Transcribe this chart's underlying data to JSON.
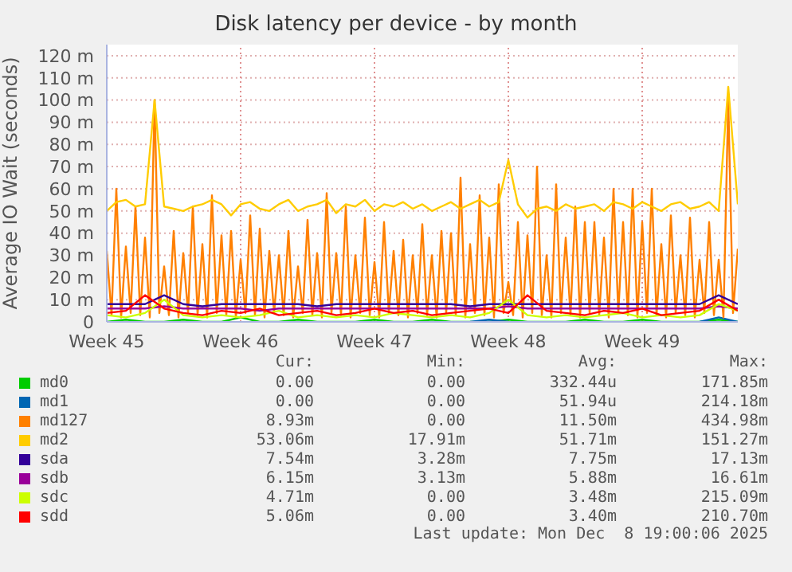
{
  "chart_data": {
    "type": "line",
    "title": "Disk latency per device - by month",
    "ylabel": "Average IO Wait (seconds)",
    "series": [
      {
        "name": "md0",
        "color": "#00cc00",
        "x": [
          "2025-11-03",
          "2025-11-04",
          "2025-11-05",
          "2025-11-06",
          "2025-11-07",
          "2025-11-08",
          "2025-11-09",
          "2025-11-10",
          "2025-11-11",
          "2025-11-12",
          "2025-11-13",
          "2025-11-14",
          "2025-11-15",
          "2025-11-16",
          "2025-11-17",
          "2025-11-18",
          "2025-11-19",
          "2025-11-20",
          "2025-11-21",
          "2025-11-22",
          "2025-11-23",
          "2025-11-24",
          "2025-11-25",
          "2025-11-26",
          "2025-11-27",
          "2025-11-28",
          "2025-11-29",
          "2025-11-30",
          "2025-12-01",
          "2025-12-02",
          "2025-12-03",
          "2025-12-04",
          "2025-12-05",
          "2025-12-06"
        ],
        "values": [
          0,
          1,
          0,
          0,
          1,
          0,
          0,
          2,
          0,
          0,
          1,
          0,
          0,
          0,
          1,
          0,
          0,
          1,
          0,
          0,
          0,
          1,
          0,
          0,
          0,
          1,
          0,
          0,
          1,
          0,
          0,
          0,
          1,
          0
        ]
      },
      {
        "name": "md1",
        "color": "#0066b3",
        "x": [
          "2025-11-22",
          "2025-11-23",
          "2025-11-24",
          "2025-11-28",
          "2025-12-04",
          "2025-12-05",
          "2025-12-06"
        ],
        "values": [
          0,
          1,
          0,
          null,
          0,
          2,
          0
        ]
      },
      {
        "name": "md127",
        "color": "#ff8000",
        "x": [
          "2025-11-03T00:00",
          "2025-11-03T06:00",
          "2025-11-03T12:00",
          "2025-11-03T18:00",
          "2025-11-04T00:00",
          "2025-11-04T06:00",
          "2025-11-04T12:00",
          "2025-11-04T18:00",
          "2025-11-05T00:00",
          "2025-11-05T06:00",
          "2025-11-05T12:00",
          "2025-11-05T18:00",
          "2025-11-06T00:00",
          "2025-11-06T06:00",
          "2025-11-06T12:00",
          "2025-11-06T18:00",
          "2025-11-07T00:00",
          "2025-11-07T06:00",
          "2025-11-07T12:00",
          "2025-11-07T18:00",
          "2025-11-08T00:00",
          "2025-11-08T06:00",
          "2025-11-08T12:00",
          "2025-11-08T18:00",
          "2025-11-09T00:00",
          "2025-11-09T06:00",
          "2025-11-09T12:00",
          "2025-11-09T18:00",
          "2025-11-10T00:00",
          "2025-11-10T06:00",
          "2025-11-10T12:00",
          "2025-11-10T18:00",
          "2025-11-11T00:00",
          "2025-11-11T06:00",
          "2025-11-11T12:00",
          "2025-11-11T18:00",
          "2025-11-12T00:00",
          "2025-11-12T06:00",
          "2025-11-12T12:00",
          "2025-11-12T18:00",
          "2025-11-13T00:00",
          "2025-11-13T06:00",
          "2025-11-13T12:00",
          "2025-11-13T18:00",
          "2025-11-14T00:00",
          "2025-11-14T06:00",
          "2025-11-14T12:00",
          "2025-11-14T18:00",
          "2025-11-15T00:00",
          "2025-11-15T06:00",
          "2025-11-15T12:00",
          "2025-11-15T18:00",
          "2025-11-16T00:00",
          "2025-11-16T06:00",
          "2025-11-16T12:00",
          "2025-11-16T18:00",
          "2025-11-17T00:00",
          "2025-11-17T06:00",
          "2025-11-17T12:00",
          "2025-11-17T18:00",
          "2025-11-18T00:00",
          "2025-11-18T06:00",
          "2025-11-18T12:00",
          "2025-11-18T18:00",
          "2025-11-19T00:00",
          "2025-11-19T06:00",
          "2025-11-19T12:00",
          "2025-11-19T18:00",
          "2025-11-20T00:00",
          "2025-11-20T06:00",
          "2025-11-20T12:00",
          "2025-11-20T18:00",
          "2025-11-21T00:00",
          "2025-11-21T06:00",
          "2025-11-21T12:00",
          "2025-11-21T18:00",
          "2025-11-22T00:00",
          "2025-11-22T06:00",
          "2025-11-22T12:00",
          "2025-11-22T18:00",
          "2025-11-23T00:00",
          "2025-11-23T06:00",
          "2025-11-23T12:00",
          "2025-11-23T18:00",
          "2025-11-24T00:00",
          "2025-11-24T06:00",
          "2025-11-24T12:00",
          "2025-11-24T18:00",
          "2025-11-25T00:00",
          "2025-11-25T06:00",
          "2025-11-25T12:00",
          "2025-11-25T18:00",
          "2025-11-26T00:00",
          "2025-11-26T06:00",
          "2025-11-26T12:00",
          "2025-11-26T18:00",
          "2025-11-27T00:00",
          "2025-11-27T06:00",
          "2025-11-27T12:00",
          "2025-11-27T18:00",
          "2025-11-28T00:00",
          "2025-11-28T06:00",
          "2025-11-28T12:00",
          "2025-11-28T18:00",
          "2025-11-29T00:00",
          "2025-11-29T06:00",
          "2025-11-29T12:00",
          "2025-11-29T18:00",
          "2025-11-30T00:00",
          "2025-11-30T06:00",
          "2025-11-30T12:00",
          "2025-11-30T18:00",
          "2025-12-01T00:00",
          "2025-12-01T06:00",
          "2025-12-01T12:00",
          "2025-12-01T18:00",
          "2025-12-02T00:00",
          "2025-12-02T06:00",
          "2025-12-02T12:00",
          "2025-12-02T18:00",
          "2025-12-03T00:00",
          "2025-12-03T06:00",
          "2025-12-03T12:00",
          "2025-12-03T18:00",
          "2025-12-04T00:00",
          "2025-12-04T06:00",
          "2025-12-04T12:00",
          "2025-12-04T18:00",
          "2025-12-05T00:00",
          "2025-12-05T06:00",
          "2025-12-05T12:00",
          "2025-12-05T18:00",
          "2025-12-06T00:00"
        ],
        "values": [
          32,
          3,
          60,
          2,
          34,
          4,
          52,
          3,
          38,
          2,
          100,
          4,
          25,
          3,
          41,
          2,
          31,
          4,
          52,
          3,
          35,
          2,
          57,
          4,
          39,
          3,
          41,
          2,
          28,
          4,
          48,
          3,
          42,
          2,
          32,
          4,
          30,
          3,
          41,
          2,
          25,
          4,
          46,
          3,
          31,
          2,
          58,
          4,
          31,
          3,
          52,
          2,
          30,
          4,
          47,
          3,
          27,
          2,
          45,
          4,
          32,
          3,
          37,
          2,
          30,
          4,
          44,
          3,
          30,
          2,
          41,
          4,
          40,
          3,
          65,
          2,
          35,
          4,
          57,
          3,
          38,
          2,
          62,
          4,
          18,
          3,
          45,
          2,
          39,
          4,
          70,
          3,
          30,
          2,
          62,
          4,
          38,
          3,
          52,
          2,
          45,
          4,
          45,
          3,
          38,
          2,
          60,
          4,
          45,
          3,
          60,
          2,
          45,
          4,
          60,
          3,
          35,
          2,
          48,
          4,
          30,
          3,
          47,
          2,
          28,
          4,
          45,
          3,
          28,
          2,
          100,
          4,
          33
        ]
      },
      {
        "name": "md2",
        "color": "#ffcc00",
        "x": [
          "2025-11-03T00:00",
          "2025-11-03T12:00",
          "2025-11-04T00:00",
          "2025-11-04T12:00",
          "2025-11-05T00:00",
          "2025-11-05T12:00",
          "2025-11-06T00:00",
          "2025-11-06T12:00",
          "2025-11-07T00:00",
          "2025-11-07T12:00",
          "2025-11-08T00:00",
          "2025-11-08T12:00",
          "2025-11-09T00:00",
          "2025-11-09T12:00",
          "2025-11-10T00:00",
          "2025-11-10T12:00",
          "2025-11-11T00:00",
          "2025-11-11T12:00",
          "2025-11-12T00:00",
          "2025-11-12T12:00",
          "2025-11-13T00:00",
          "2025-11-13T12:00",
          "2025-11-14T00:00",
          "2025-11-14T12:00",
          "2025-11-15T00:00",
          "2025-11-15T12:00",
          "2025-11-16T00:00",
          "2025-11-16T12:00",
          "2025-11-17T00:00",
          "2025-11-17T12:00",
          "2025-11-18T00:00",
          "2025-11-18T12:00",
          "2025-11-19T00:00",
          "2025-11-19T12:00",
          "2025-11-20T00:00",
          "2025-11-20T12:00",
          "2025-11-21T00:00",
          "2025-11-21T12:00",
          "2025-11-22T00:00",
          "2025-11-22T12:00",
          "2025-11-23T00:00",
          "2025-11-23T12:00",
          "2025-11-24T00:00",
          "2025-11-24T12:00",
          "2025-11-25T00:00",
          "2025-11-25T12:00",
          "2025-11-26T00:00",
          "2025-11-26T12:00",
          "2025-11-27T00:00",
          "2025-11-27T12:00",
          "2025-11-28T00:00",
          "2025-11-28T12:00",
          "2025-11-29T00:00",
          "2025-11-29T12:00",
          "2025-11-30T00:00",
          "2025-11-30T12:00",
          "2025-12-01T00:00",
          "2025-12-01T12:00",
          "2025-12-02T00:00",
          "2025-12-02T12:00",
          "2025-12-03T00:00",
          "2025-12-03T12:00",
          "2025-12-04T00:00",
          "2025-12-04T12:00",
          "2025-12-05T00:00",
          "2025-12-05T12:00",
          "2025-12-06T00:00"
        ],
        "values": [
          50,
          54,
          55,
          52,
          53,
          100,
          52,
          51,
          50,
          52,
          53,
          55,
          53,
          48,
          53,
          54,
          51,
          50,
          53,
          55,
          50,
          52,
          53,
          55,
          49,
          53,
          52,
          55,
          50,
          53,
          52,
          54,
          51,
          53,
          50,
          52,
          54,
          51,
          53,
          55,
          52,
          54,
          73,
          53,
          47,
          51,
          52,
          50,
          53,
          51,
          52,
          53,
          50,
          54,
          53,
          51,
          54,
          52,
          50,
          53,
          54,
          51,
          52,
          54,
          50,
          106,
          53
        ]
      },
      {
        "name": "sda",
        "color": "#330099",
        "x": [
          "2025-11-03",
          "2025-11-04",
          "2025-11-05",
          "2025-11-06",
          "2025-11-07",
          "2025-11-08",
          "2025-11-09",
          "2025-11-10",
          "2025-11-11",
          "2025-11-12",
          "2025-11-13",
          "2025-11-14",
          "2025-11-15",
          "2025-11-16",
          "2025-11-17",
          "2025-11-18",
          "2025-11-19",
          "2025-11-20",
          "2025-11-21",
          "2025-11-22",
          "2025-11-23",
          "2025-11-24",
          "2025-11-25",
          "2025-11-26",
          "2025-11-27",
          "2025-11-28",
          "2025-11-29",
          "2025-11-30",
          "2025-12-01",
          "2025-12-02",
          "2025-12-03",
          "2025-12-04",
          "2025-12-05",
          "2025-12-06"
        ],
        "values": [
          8,
          8,
          8,
          12,
          8,
          7,
          8,
          8,
          8,
          8,
          8,
          7,
          8,
          8,
          8,
          8,
          8,
          8,
          8,
          7,
          8,
          8,
          8,
          8,
          8,
          8,
          8,
          8,
          8,
          8,
          8,
          8,
          12,
          8
        ]
      },
      {
        "name": "sdb",
        "color": "#990099",
        "x": [
          "2025-11-03",
          "2025-11-04",
          "2025-11-05",
          "2025-11-06",
          "2025-11-07",
          "2025-11-08",
          "2025-11-09",
          "2025-11-10",
          "2025-11-11",
          "2025-11-12",
          "2025-11-13",
          "2025-11-14",
          "2025-11-15",
          "2025-11-16",
          "2025-11-17",
          "2025-11-18",
          "2025-11-19",
          "2025-11-20",
          "2025-11-21",
          "2025-11-22",
          "2025-11-23",
          "2025-11-24",
          "2025-11-25",
          "2025-11-26",
          "2025-11-27",
          "2025-11-28",
          "2025-11-29",
          "2025-11-30",
          "2025-12-01",
          "2025-12-02",
          "2025-12-03",
          "2025-12-04",
          "2025-12-05",
          "2025-12-06"
        ],
        "values": [
          6,
          6,
          6,
          7,
          6,
          6,
          6,
          6,
          5,
          6,
          6,
          6,
          6,
          6,
          6,
          6,
          6,
          6,
          6,
          6,
          6,
          7,
          6,
          6,
          6,
          6,
          6,
          6,
          6,
          6,
          6,
          6,
          7,
          6
        ]
      },
      {
        "name": "sdc",
        "color": "#ccff00",
        "x": [
          "2025-11-03",
          "2025-11-04",
          "2025-11-05",
          "2025-11-06",
          "2025-11-07",
          "2025-11-08",
          "2025-11-09",
          "2025-11-10",
          "2025-11-11",
          "2025-11-12",
          "2025-11-13",
          "2025-11-14",
          "2025-11-15",
          "2025-11-16",
          "2025-11-17",
          "2025-11-18",
          "2025-11-19",
          "2025-11-20",
          "2025-11-21",
          "2025-11-22",
          "2025-11-23",
          "2025-11-24",
          "2025-11-25",
          "2025-11-26",
          "2025-11-27",
          "2025-11-28",
          "2025-11-29",
          "2025-11-30",
          "2025-12-01",
          "2025-12-02",
          "2025-12-03",
          "2025-12-04",
          "2025-12-05",
          "2025-12-06"
        ],
        "values": [
          3,
          2,
          4,
          10,
          3,
          2,
          3,
          2,
          3,
          5,
          2,
          3,
          2,
          3,
          2,
          4,
          3,
          2,
          3,
          2,
          4,
          10,
          3,
          2,
          3,
          2,
          3,
          4,
          2,
          3,
          2,
          3,
          8,
          5
        ]
      },
      {
        "name": "sdd",
        "color": "#ff0000",
        "x": [
          "2025-11-03",
          "2025-11-04",
          "2025-11-05",
          "2025-11-06",
          "2025-11-07",
          "2025-11-08",
          "2025-11-09",
          "2025-11-10",
          "2025-11-11",
          "2025-11-12",
          "2025-11-13",
          "2025-11-14",
          "2025-11-15",
          "2025-11-16",
          "2025-11-17",
          "2025-11-18",
          "2025-11-19",
          "2025-11-20",
          "2025-11-21",
          "2025-11-22",
          "2025-11-23",
          "2025-11-24",
          "2025-11-25",
          "2025-11-26",
          "2025-11-27",
          "2025-11-28",
          "2025-11-29",
          "2025-11-30",
          "2025-12-01",
          "2025-12-02",
          "2025-12-03",
          "2025-12-04",
          "2025-12-05",
          "2025-12-06"
        ],
        "values": [
          4,
          5,
          12,
          6,
          4,
          3,
          5,
          4,
          6,
          3,
          4,
          5,
          3,
          4,
          6,
          4,
          5,
          3,
          4,
          5,
          6,
          4,
          12,
          5,
          4,
          3,
          5,
          4,
          6,
          3,
          4,
          5,
          10,
          5
        ]
      }
    ],
    "xlim": [
      "2025-11-03",
      "2025-12-06"
    ],
    "xticks": [
      {
        "value": "2025-11-03",
        "label": "Week 45"
      },
      {
        "value": "2025-11-10",
        "label": "Week 46"
      },
      {
        "value": "2025-11-17",
        "label": "Week 47"
      },
      {
        "value": "2025-11-24",
        "label": "Week 48"
      },
      {
        "value": "2025-12-01",
        "label": "Week 49"
      }
    ],
    "ylim": [
      0,
      125
    ],
    "yticks": [
      0,
      {
        "value": 10,
        "label": "10 m"
      },
      {
        "value": 20,
        "label": "20 m"
      },
      {
        "value": 30,
        "label": "30 m"
      },
      {
        "value": 40,
        "label": "40 m"
      },
      {
        "value": 50,
        "label": "50 m"
      },
      {
        "value": 60,
        "label": "60 m"
      },
      {
        "value": 70,
        "label": "70 m"
      },
      {
        "value": 80,
        "label": "80 m"
      },
      {
        "value": 90,
        "label": "90 m"
      },
      {
        "value": 100,
        "label": "100 m"
      },
      {
        "value": 110,
        "label": "110 m"
      },
      {
        "value": 120,
        "label": "120 m"
      }
    ],
    "grid": true,
    "legend": "bottom",
    "marker": "none",
    "line_style": "solid",
    "annotations": [
      "Cur:",
      "Min:",
      "Avg:",
      "Max:",
      "0.00",
      "0.00",
      "332.44u",
      "171.85m",
      "0.00",
      "0.00",
      "51.94u",
      "214.18m",
      "8.93m",
      "0.00",
      "11.50m",
      "434.98m",
      "53.06m",
      "17.91m",
      "51.71m",
      "151.27m",
      "7.54m",
      "3.28m",
      "7.75m",
      "17.13m",
      "6.15m",
      "3.13m",
      "5.88m",
      "16.61m",
      "4.71m",
      "0.00",
      "3.48m",
      "215.09m",
      "5.06m",
      "0.00",
      "3.40m",
      "210.70m",
      "Last update: Mon Dec  8 19:00:06 2025"
    ]
  }
}
